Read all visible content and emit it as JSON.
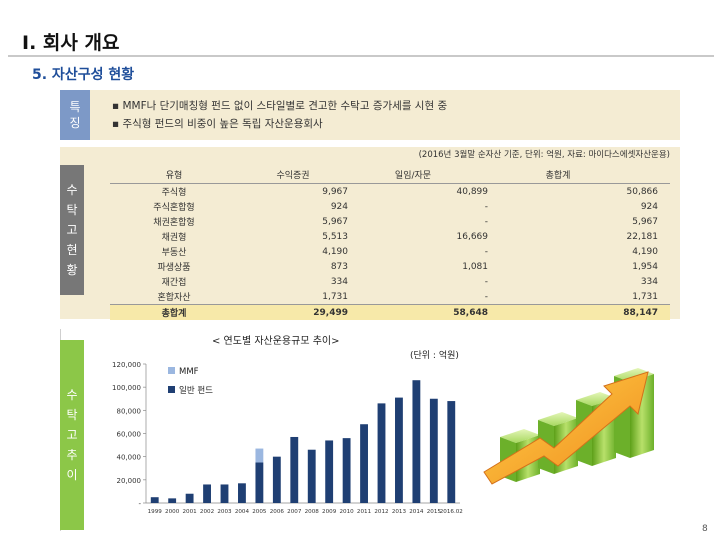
{
  "header": {
    "title": "I. 회사 개요"
  },
  "section": {
    "title": "5. 자산구성 현황"
  },
  "features": {
    "label_line1": "특",
    "label_line2": "징",
    "items": [
      "▪ MMF나 단기매칭형 펀드 없이 스타일별로 견고한 수탁고 증가세를 시현 중",
      "▪ 주식형 펀드의 비중이 높은 독립 자산운용회사"
    ]
  },
  "aum_table": {
    "side_label": [
      "수",
      "탁",
      "고",
      "현",
      "황"
    ],
    "note": "(2016년 3월말 순자산 기준, 단위: 억원, 자료: 마이다스에셋자산운용)",
    "headers": [
      "유형",
      "수익증권",
      "일임/자문",
      "총합계"
    ],
    "rows": [
      [
        "주식형",
        "9,967",
        "40,899",
        "50,866"
      ],
      [
        "주식혼합형",
        "924",
        "-",
        "924"
      ],
      [
        "채권혼합형",
        "5,967",
        "-",
        "5,967"
      ],
      [
        "채권형",
        "5,513",
        "16,669",
        "22,181"
      ],
      [
        "부동산",
        "4,190",
        "-",
        "4,190"
      ],
      [
        "파생상품",
        "873",
        "1,081",
        "1,954"
      ],
      [
        "재간접",
        "334",
        "-",
        "334"
      ],
      [
        "혼합자산",
        "1,731",
        "-",
        "1,731"
      ]
    ],
    "total": [
      "총합계",
      "29,499",
      "58,648",
      "88,147"
    ]
  },
  "chart": {
    "side_label": [
      "수",
      "탁",
      "고",
      "추",
      "이"
    ],
    "title": "< 연도별 자산운용규모 추이>",
    "unit": "(단위 : 억원)",
    "page_number": "8"
  },
  "chart_data": {
    "type": "bar",
    "stacked": true,
    "categories": [
      "1999",
      "2000",
      "2001",
      "2002",
      "2003",
      "2004",
      "2005",
      "2006",
      "2007",
      "2008",
      "2009",
      "2010",
      "2011",
      "2012",
      "2013",
      "2014",
      "2015",
      "2016.02"
    ],
    "series": [
      {
        "name": "일반 펀드",
        "values": [
          5000,
          4000,
          8000,
          16000,
          16000,
          17000,
          35000,
          40000,
          57000,
          46000,
          54000,
          56000,
          68000,
          86000,
          91000,
          106000,
          90000,
          88000
        ]
      },
      {
        "name": "MMF",
        "values": [
          0,
          0,
          0,
          0,
          0,
          0,
          12000,
          0,
          0,
          0,
          0,
          0,
          0,
          0,
          0,
          0,
          0,
          0
        ]
      }
    ],
    "ylim": [
      0,
      120000
    ],
    "yticks": [
      "120,000",
      "100,000",
      "80,000",
      "60,000",
      "40,000",
      "20,000",
      "-"
    ],
    "legend_position": "top-left",
    "colors": {
      "일반 펀드": "#1f3f73",
      "MMF": "#9bb7e0"
    }
  }
}
